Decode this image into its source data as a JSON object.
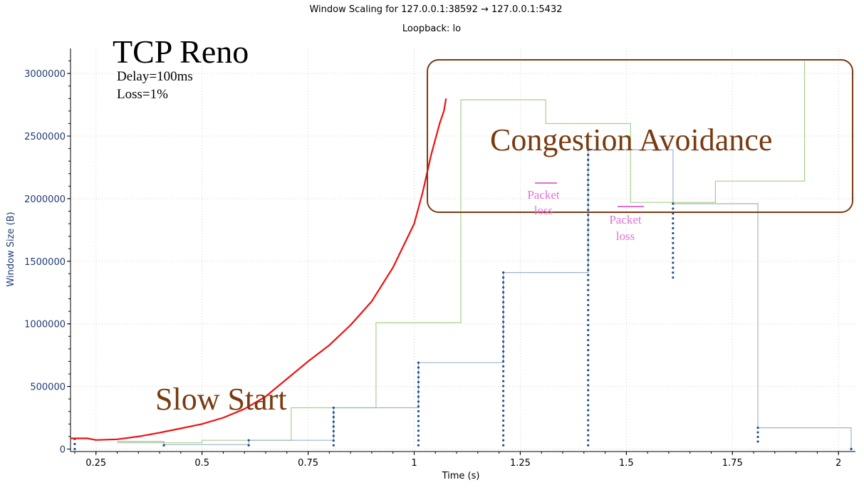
{
  "header": {
    "title": "Window Scaling for 127.0.0.1:38592 → 127.0.0.1:5432",
    "subtitle": "Loopback: lo"
  },
  "annotations": {
    "protocol": "TCP  Reno",
    "delay": "Delay=100ms",
    "loss": "Loss=1%",
    "slow_start": "Slow  Start",
    "congestion_avoidance": "Congestion  Avoidance",
    "packet_loss_1_line1": "Packet",
    "packet_loss_1_line2": "loss",
    "packet_loss_2_line1": "Packet",
    "packet_loss_2_line2": "loss"
  },
  "colors": {
    "cwnd": "#ee1111",
    "rwnd_green": "#a6cf8c",
    "bytes_in_flight": "#9eb3c8",
    "points": "#1f4f8f",
    "annotation_brown": "#7a3a10",
    "packet_loss": "#e070d8"
  },
  "chart_data": {
    "type": "line",
    "title": "Window Scaling for 127.0.0.1:38592 → 127.0.0.1:5432",
    "subtitle": "Loopback: lo",
    "xlabel": "Time (s)",
    "ylabel": "Window Size (B)",
    "xlim": [
      0.19,
      2.04
    ],
    "ylim": [
      -20000,
      3200000
    ],
    "x_ticks": [
      0.25,
      0.5,
      0.75,
      1,
      1.25,
      1.5,
      1.75,
      2
    ],
    "x_tick_labels": [
      "0.25",
      "0.5",
      "0.75",
      "1",
      "1.25",
      "1.5",
      "1.75",
      "2"
    ],
    "y_ticks": [
      0,
      500000,
      1000000,
      1500000,
      2000000,
      2500000,
      3000000
    ],
    "y_tick_labels": [
      "0",
      "500000",
      "1000000",
      "1500000",
      "2000000",
      "2500000",
      "3000000"
    ],
    "grid": true,
    "series": [
      {
        "style": "red-line",
        "x": [
          0.19,
          0.23,
          0.25,
          0.3,
          0.35,
          0.4,
          0.45,
          0.5,
          0.55,
          0.6,
          0.65,
          0.7,
          0.75,
          0.8,
          0.85,
          0.9,
          0.95,
          1.0,
          1.02,
          1.04,
          1.06,
          1.07,
          1.075
        ],
        "values": [
          85000,
          85000,
          72000,
          78000,
          100000,
          130000,
          165000,
          200000,
          250000,
          320000,
          420000,
          560000,
          700000,
          830000,
          990000,
          1180000,
          1450000,
          1800000,
          2050000,
          2350000,
          2600000,
          2700000,
          2800000
        ]
      },
      {
        "style": "green-step",
        "x": [
          0.3,
          0.5,
          0.5,
          0.71,
          0.71,
          0.91,
          0.91,
          1.11,
          1.11,
          1.31,
          1.31,
          1.51,
          1.51,
          1.71,
          1.71,
          1.92,
          1.92
        ],
        "values": [
          50000,
          50000,
          70000,
          70000,
          330000,
          330000,
          1010000,
          1010000,
          2790000,
          2790000,
          2600000,
          2600000,
          1970000,
          1970000,
          2140000,
          2140000,
          3100000
        ]
      },
      {
        "style": "blue-step",
        "x": [
          0.3,
          0.41,
          0.41,
          0.61,
          0.61,
          0.81,
          0.81,
          1.01,
          1.01,
          1.21,
          1.21,
          1.41,
          1.41,
          1.61,
          1.61,
          1.81,
          1.81,
          2.03,
          2.03
        ],
        "values": [
          60000,
          60000,
          35000,
          35000,
          70000,
          70000,
          330000,
          330000,
          690000,
          690000,
          1410000,
          1410000,
          2390000,
          2390000,
          1960000,
          1960000,
          170000,
          170000,
          0
        ]
      },
      {
        "style": "blue-points",
        "x": [
          0.2,
          0.41,
          0.61,
          0.81,
          1.01,
          1.21,
          1.41,
          1.61,
          1.81,
          2.03
        ],
        "values_min": [
          0,
          30000,
          30000,
          30000,
          30000,
          30000,
          30000,
          1370000,
          60000,
          0
        ],
        "values_max": [
          80000,
          30000,
          70000,
          330000,
          690000,
          1410000,
          2390000,
          1960000,
          170000,
          0
        ]
      }
    ]
  }
}
